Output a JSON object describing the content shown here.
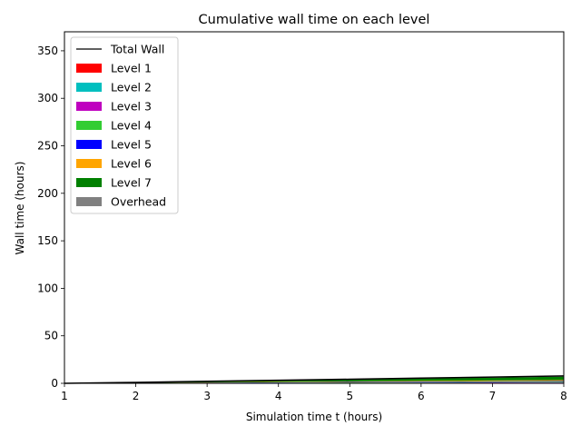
{
  "chart_data": {
    "type": "area",
    "title": "Cumulative wall time on each level",
    "xlabel": "Simulation time t (hours)",
    "ylabel": "Wall time (hours)",
    "xlim": [
      1,
      8
    ],
    "ylim": [
      0,
      370
    ],
    "xticks": [
      1,
      2,
      3,
      4,
      5,
      6,
      7,
      8
    ],
    "yticks": [
      0,
      50,
      100,
      150,
      200,
      250,
      300,
      350
    ],
    "x": [
      1,
      2,
      3,
      4,
      5,
      6,
      7,
      8
    ],
    "total_wall": {
      "name": "Total Wall",
      "color": "#000000",
      "values": [
        0.0,
        1.0,
        2.1,
        3.2,
        4.3,
        5.5,
        6.6,
        7.8
      ]
    },
    "series": [
      {
        "name": "Level 1",
        "color": "#ff0000",
        "values": [
          0,
          0.05,
          0.1,
          0.15,
          0.2,
          0.25,
          0.3,
          0.35
        ]
      },
      {
        "name": "Level 2",
        "color": "#00bfbf",
        "values": [
          0,
          0.05,
          0.1,
          0.15,
          0.2,
          0.25,
          0.3,
          0.35
        ]
      },
      {
        "name": "Level 3",
        "color": "#bf00bf",
        "values": [
          0,
          0.05,
          0.1,
          0.15,
          0.2,
          0.25,
          0.3,
          0.35
        ]
      },
      {
        "name": "Level 4",
        "color": "#32cd32",
        "values": [
          0,
          0.1,
          0.2,
          0.3,
          0.4,
          0.5,
          0.6,
          0.7
        ]
      },
      {
        "name": "Level 5",
        "color": "#0000ff",
        "values": [
          0,
          0.1,
          0.2,
          0.3,
          0.4,
          0.5,
          0.6,
          0.7
        ]
      },
      {
        "name": "Level 6",
        "color": "#ffa500",
        "values": [
          0,
          0.15,
          0.3,
          0.45,
          0.6,
          0.75,
          0.9,
          1.05
        ]
      },
      {
        "name": "Level 7",
        "color": "#008000",
        "values": [
          0,
          0.45,
          0.95,
          1.45,
          1.95,
          2.5,
          3.0,
          3.55
        ]
      },
      {
        "name": "Overhead",
        "color": "#808080",
        "values": [
          0,
          0.05,
          0.15,
          0.25,
          0.35,
          0.5,
          0.6,
          0.75
        ]
      }
    ],
    "grid": false,
    "legend_position": "upper-left"
  }
}
